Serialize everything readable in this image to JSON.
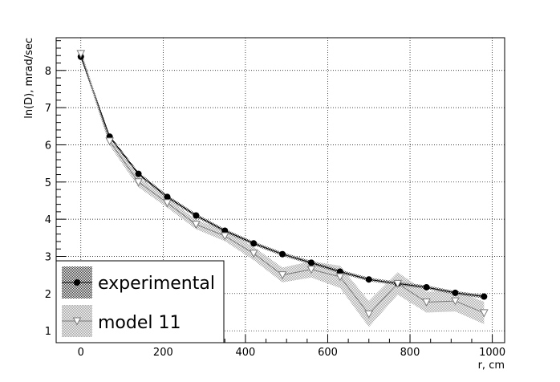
{
  "chart_data": {
    "type": "line",
    "xlabel": "r, cm",
    "ylabel": "ln(D), mrad/sec",
    "xlim": [
      -60,
      1030
    ],
    "ylim": [
      0.68,
      8.88
    ],
    "x_ticks": [
      0,
      200,
      400,
      600,
      800,
      1000
    ],
    "y_ticks": [
      1,
      2,
      3,
      4,
      5,
      6,
      7,
      8
    ],
    "grid": true,
    "legend_position": "bottom-left",
    "series": [
      {
        "name": "experimental",
        "marker": "filled-circle",
        "color": "#000000",
        "band_color": "#444444",
        "x": [
          0,
          70,
          140,
          210,
          280,
          350,
          420,
          490,
          560,
          630,
          700,
          770,
          840,
          910,
          980
        ],
        "y": [
          8.37,
          6.22,
          5.22,
          4.6,
          4.1,
          3.69,
          3.35,
          3.06,
          2.83,
          2.59,
          2.38,
          2.27,
          2.17,
          2.02,
          1.92
        ],
        "band": [
          0.05,
          0.05,
          0.05,
          0.05,
          0.05,
          0.05,
          0.05,
          0.05,
          0.05,
          0.05,
          0.05,
          0.05,
          0.05,
          0.05,
          0.05
        ]
      },
      {
        "name": "model 11",
        "marker": "open-triangle-down",
        "color": "#7a7a7a",
        "band_color": "#9a9a9a",
        "x": [
          0,
          70,
          140,
          210,
          280,
          350,
          420,
          490,
          560,
          630,
          700,
          770,
          840,
          910,
          980
        ],
        "y": [
          8.45,
          6.1,
          5.0,
          4.44,
          3.86,
          3.55,
          3.08,
          2.5,
          2.65,
          2.45,
          1.45,
          2.27,
          1.77,
          1.8,
          1.48
        ],
        "band": [
          0.1,
          0.12,
          0.14,
          0.13,
          0.13,
          0.14,
          0.18,
          0.2,
          0.22,
          0.3,
          0.35,
          0.3,
          0.28,
          0.28,
          0.3
        ]
      }
    ]
  }
}
